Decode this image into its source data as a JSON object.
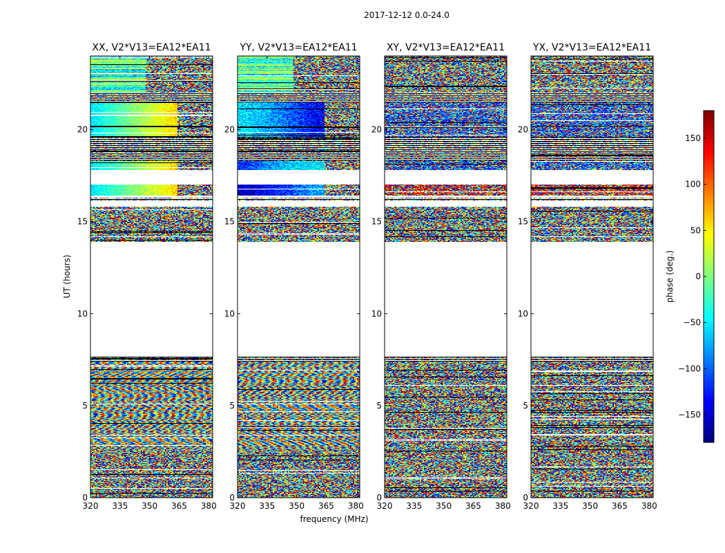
{
  "chart_data": {
    "type": "heatmap",
    "suptitle": "2017-12-12 0.0-24.0",
    "xlabel": "frequency (MHz)",
    "ylabel": "UT (hours)",
    "xlim": [
      320,
      382
    ],
    "ylim": [
      0,
      24
    ],
    "xticks": [
      320,
      335,
      350,
      365,
      380
    ],
    "yticks": [
      0,
      5,
      10,
      15,
      20
    ],
    "colorbar": {
      "label": "phase (deg.)",
      "range": [
        -180,
        180
      ],
      "ticks": [
        -150,
        -100,
        -50,
        0,
        50,
        100,
        150
      ],
      "colormap": "jet",
      "colors": [
        "#00007f",
        "#0000ff",
        "#007fff",
        "#00ffff",
        "#7fff7f",
        "#ffff00",
        "#ff7f00",
        "#ff0000",
        "#7f0000"
      ]
    },
    "data_bands_hours": [
      {
        "from": 0.0,
        "to": 2.6,
        "kind": "noisy"
      },
      {
        "from": 2.6,
        "to": 7.4,
        "kind": "noisy-fringe"
      },
      {
        "from": 7.4,
        "to": 7.7,
        "kind": "striped"
      },
      {
        "from": 13.9,
        "to": 15.8,
        "kind": "noisy"
      },
      {
        "from": 16.1,
        "to": 16.3,
        "kind": "striped"
      },
      {
        "from": 16.4,
        "to": 17.0,
        "kind": "smooth"
      },
      {
        "from": 17.8,
        "to": 18.3,
        "kind": "smooth"
      },
      {
        "from": 18.3,
        "to": 19.6,
        "kind": "striped"
      },
      {
        "from": 19.6,
        "to": 21.5,
        "kind": "smooth"
      },
      {
        "from": 21.5,
        "to": 22.0,
        "kind": "striped"
      },
      {
        "from": 22.0,
        "to": 24.0,
        "kind": "mixed"
      }
    ],
    "panels": [
      {
        "title": "XX, V2*V13=EA12*EA11",
        "pol": "XX"
      },
      {
        "title": "YY, V2*V13=EA12*EA11",
        "pol": "YY"
      },
      {
        "title": "XY, V2*V13=EA12*EA11",
        "pol": "XY"
      },
      {
        "title": "YX, V2*V13=EA12*EA11",
        "pol": "YX"
      }
    ]
  }
}
